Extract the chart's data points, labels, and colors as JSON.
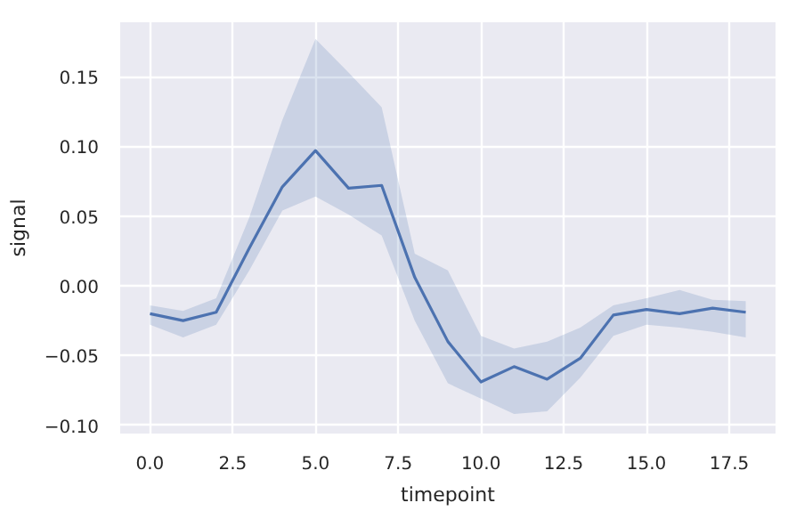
{
  "chart_data": {
    "type": "line",
    "xlabel": "timepoint",
    "ylabel": "signal",
    "x": [
      0,
      1,
      2,
      3,
      4,
      5,
      6,
      7,
      8,
      9,
      10,
      11,
      12,
      13,
      14,
      15,
      16,
      17,
      18
    ],
    "series": [
      {
        "color": "#4c72b0",
        "values": [
          -0.02,
          -0.025,
          -0.019,
          0.027,
          0.071,
          0.097,
          0.07,
          0.072,
          0.006,
          -0.04,
          -0.069,
          -0.058,
          -0.067,
          -0.052,
          -0.021,
          -0.017,
          -0.02,
          -0.016,
          -0.019
        ],
        "lower": [
          -0.028,
          -0.037,
          -0.028,
          0.011,
          0.054,
          0.064,
          0.051,
          0.036,
          -0.025,
          -0.07,
          -0.081,
          -0.092,
          -0.09,
          -0.066,
          -0.036,
          -0.028,
          -0.03,
          -0.033,
          -0.037
        ],
        "upper": [
          -0.014,
          -0.018,
          -0.009,
          0.049,
          0.119,
          0.177,
          0.153,
          0.128,
          0.023,
          0.011,
          -0.036,
          -0.045,
          -0.04,
          -0.03,
          -0.014,
          -0.009,
          -0.003,
          -0.01,
          -0.011
        ]
      }
    ],
    "xlim": [
      -0.9,
      18.9
    ],
    "ylim": [
      -0.106,
      0.189
    ],
    "xticks": [
      {
        "value": 0,
        "label": "0.0"
      },
      {
        "value": 2.5,
        "label": "2.5"
      },
      {
        "value": 5,
        "label": "5.0"
      },
      {
        "value": 7.5,
        "label": "7.5"
      },
      {
        "value": 10,
        "label": "10.0"
      },
      {
        "value": 12.5,
        "label": "12.5"
      },
      {
        "value": 15,
        "label": "15.0"
      },
      {
        "value": 17.5,
        "label": "17.5"
      }
    ],
    "yticks": [
      {
        "value": -0.1,
        "label": "−0.10"
      },
      {
        "value": -0.05,
        "label": "−0.05"
      },
      {
        "value": 0,
        "label": "0.00"
      },
      {
        "value": 0.05,
        "label": "0.05"
      },
      {
        "value": 0.1,
        "label": "0.10"
      },
      {
        "value": 0.15,
        "label": "0.15"
      }
    ],
    "grid": true,
    "line_style": "solid",
    "marker": "none"
  }
}
